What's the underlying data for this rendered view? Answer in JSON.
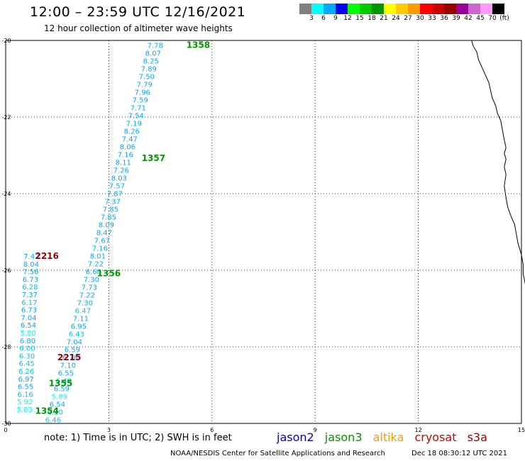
{
  "header": {
    "title": "12:00 – 23:59 UTC 12/16/2021",
    "subtitle": "12 hour collection of altimeter wave heights"
  },
  "colorbar": {
    "colors": [
      "#808080",
      "#00ffff",
      "#00aaff",
      "#0000ff",
      "#00ff00",
      "#00c800",
      "#009600",
      "#ffff00",
      "#ffcc00",
      "#ff9900",
      "#ff0000",
      "#cc0000",
      "#990000",
      "#990099",
      "#cc66cc",
      "#ff99ff",
      "#000000"
    ],
    "labels": [
      "3",
      "6",
      "9",
      "12",
      "15",
      "18",
      "21",
      "24",
      "27",
      "30",
      "33",
      "36",
      "39",
      "42",
      "45",
      "70",
      "(ft)"
    ]
  },
  "axes": {
    "x_ticks": [
      "0",
      "3",
      "6",
      "9",
      "12",
      "15"
    ],
    "y_ticks": [
      "-20",
      "-22",
      "-24",
      "-26",
      "-28",
      "-30"
    ]
  },
  "track_colors": {
    "high": "#00aaff",
    "mid": "#00c8e6",
    "low": "#00ffff",
    "pass_jason3": "#009600",
    "pass_cryosat": "#990000"
  },
  "tracks": [
    {
      "values": [
        "7.78",
        "8.07",
        "8.25",
        "7.89",
        "7.50",
        "7.79",
        "7.96",
        "7.59",
        "7.71",
        "7.54",
        "7.19",
        "8.26",
        "7.47",
        "8.06",
        "7.16",
        "8.11",
        "7.26",
        "8.03",
        "7.57",
        "7.87",
        "7.37",
        "7.85",
        "7.85",
        "8.09",
        "8.47",
        "7.67",
        "7.16",
        "8.01",
        "7.22",
        "6.60",
        "7.30",
        "7.73",
        "7.22",
        "7.30",
        "6.47",
        "7.11",
        "6.95",
        "6.43",
        "7.04",
        "6.59",
        "6.78",
        "7.10",
        "6.55",
        "6.48",
        "6.59",
        "5.89",
        "6.54",
        "6.20",
        "6.46"
      ],
      "lon_start": 4.35,
      "lat_start": -20.12,
      "lon_end": 1.38,
      "lat_end": -29.9
    },
    {
      "values": [
        "7.42",
        "8.04",
        "7.56",
        "6.73",
        "6.28",
        "7.37",
        "6.17",
        "6.73",
        "7.04",
        "6.54",
        "5.80",
        "6.80",
        "6.00",
        "6.30",
        "6.45",
        "6.26",
        "6.97",
        "6.55",
        "6.16",
        "5.92",
        "5.83"
      ],
      "lon_start": 0.75,
      "lat_start": -25.63,
      "lon_end": 0.55,
      "lat_end": -29.63
    }
  ],
  "passes": [
    {
      "label": "1358",
      "lon": 5.6,
      "lat": -20.12,
      "sat": "jason3"
    },
    {
      "label": "1357",
      "lon": 4.3,
      "lat": -23.07,
      "sat": "jason3"
    },
    {
      "label": "1356",
      "lon": 3.0,
      "lat": -26.08,
      "sat": "jason3"
    },
    {
      "label": "1355",
      "lon": 1.6,
      "lat": -28.95,
      "sat": "jason3"
    },
    {
      "label": "1354",
      "lon": 1.2,
      "lat": -29.68,
      "sat": "jason3"
    },
    {
      "label": "2216",
      "lon": 1.2,
      "lat": -25.63,
      "sat": "cryosat"
    },
    {
      "label": "2215",
      "lon": 1.85,
      "lat": -28.28,
      "sat": "cryosat"
    }
  ],
  "coastline": [
    [
      13.55,
      -20.0
    ],
    [
      13.6,
      -20.15
    ],
    [
      13.7,
      -20.3
    ],
    [
      13.75,
      -20.5
    ],
    [
      13.85,
      -20.7
    ],
    [
      13.95,
      -20.9
    ],
    [
      14.05,
      -21.1
    ],
    [
      14.1,
      -21.3
    ],
    [
      14.15,
      -21.5
    ],
    [
      14.25,
      -21.7
    ],
    [
      14.3,
      -21.9
    ],
    [
      14.4,
      -22.1
    ],
    [
      14.45,
      -22.35
    ],
    [
      14.5,
      -22.6
    ],
    [
      14.55,
      -22.8
    ],
    [
      14.5,
      -22.95
    ],
    [
      14.55,
      -23.1
    ],
    [
      14.5,
      -23.3
    ],
    [
      14.55,
      -23.5
    ],
    [
      14.5,
      -23.8
    ],
    [
      14.55,
      -24.1
    ],
    [
      14.6,
      -24.35
    ],
    [
      14.7,
      -24.6
    ],
    [
      14.8,
      -24.8
    ],
    [
      14.85,
      -25.05
    ],
    [
      14.9,
      -25.3
    ],
    [
      15.0,
      -25.6
    ],
    [
      15.05,
      -25.85
    ],
    [
      15.05,
      -26.1
    ],
    [
      15.1,
      -26.3
    ],
    [
      15.15,
      -26.6
    ]
  ],
  "note": "note:  1) Time is in UTC; 2) SWH is in feet",
  "legend": [
    {
      "label": "jason2",
      "color": "#0000cc"
    },
    {
      "label": "jason3",
      "color": "#009600"
    },
    {
      "label": "altika",
      "color": "#ff9900"
    },
    {
      "label": "cryosat",
      "color": "#cc0000"
    },
    {
      "label": "s3a",
      "color": "#990000"
    }
  ],
  "footer": {
    "credit": "NOAA/NESDIS Center for Satellite Applications and Research",
    "timestamp": "Dec 18 08:30:12 UTC 2021"
  }
}
